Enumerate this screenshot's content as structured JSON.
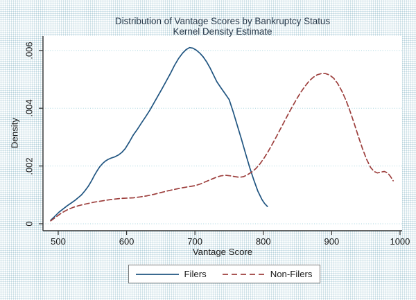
{
  "colors": {
    "filers_line": "#1f5480",
    "nonfilers_line": "#9d3f3d",
    "gridline": "#a8d5de",
    "axis": "#333333",
    "background_dot": "#b9d4de",
    "plot_background": "#ffffff",
    "title_text": "#28394a",
    "legend_border": "#7a7a7a"
  },
  "chart_data": {
    "type": "line",
    "title": "Distribution of Vantage Scores by Bankruptcy Status",
    "subtitle": "Kernel Density Estimate",
    "xlabel": "Vantage Score",
    "ylabel": "Density",
    "xlim": [
      477.7,
      1003.1
    ],
    "ylim": [
      -0.00024,
      0.0065
    ],
    "grid": "horizontal-dotted",
    "grid_color": "#a8d5de",
    "legend_position": "bottom-center",
    "x_ticks": [
      {
        "value": 500,
        "label": "500"
      },
      {
        "value": 600,
        "label": "600"
      },
      {
        "value": 700,
        "label": "700"
      },
      {
        "value": 800,
        "label": "800"
      },
      {
        "value": 900,
        "label": "900"
      },
      {
        "value": 1000,
        "label": "1000"
      }
    ],
    "y_ticks": [
      {
        "value": 0,
        "label": "0"
      },
      {
        "value": 0.002,
        "label": ".002"
      },
      {
        "value": 0.004,
        "label": ".004"
      },
      {
        "value": 0.006,
        "label": ".006"
      }
    ],
    "series": [
      {
        "name": "Filers",
        "color": "#1f5480",
        "style": "solid",
        "points": [
          [
            489,
            0.00012
          ],
          [
            495,
            0.00026
          ],
          [
            501,
            0.0004
          ],
          [
            507,
            0.00051
          ],
          [
            513,
            0.00062
          ],
          [
            519,
            0.00072
          ],
          [
            525,
            0.00082
          ],
          [
            530,
            0.00092
          ],
          [
            534,
            0.001
          ],
          [
            539,
            0.00114
          ],
          [
            544,
            0.0013
          ],
          [
            549,
            0.0015
          ],
          [
            553,
            0.00168
          ],
          [
            557,
            0.00184
          ],
          [
            561,
            0.00198
          ],
          [
            565,
            0.00209
          ],
          [
            569,
            0.00217
          ],
          [
            573,
            0.00223
          ],
          [
            578,
            0.00228
          ],
          [
            583,
            0.00232
          ],
          [
            588,
            0.00238
          ],
          [
            593,
            0.00247
          ],
          [
            598,
            0.0026
          ],
          [
            604,
            0.00283
          ],
          [
            610,
            0.00308
          ],
          [
            616,
            0.00328
          ],
          [
            622,
            0.0035
          ],
          [
            628,
            0.00371
          ],
          [
            634,
            0.00393
          ],
          [
            640,
            0.00418
          ],
          [
            646,
            0.00443
          ],
          [
            652,
            0.00468
          ],
          [
            658,
            0.00494
          ],
          [
            664,
            0.0052
          ],
          [
            670,
            0.00548
          ],
          [
            676,
            0.00572
          ],
          [
            682,
            0.00591
          ],
          [
            687,
            0.00603
          ],
          [
            692,
            0.0061
          ],
          [
            697,
            0.00608
          ],
          [
            702,
            0.00601
          ],
          [
            707,
            0.00591
          ],
          [
            712,
            0.00578
          ],
          [
            717,
            0.00561
          ],
          [
            722,
            0.0054
          ],
          [
            727,
            0.00516
          ],
          [
            732,
            0.00492
          ],
          [
            738,
            0.00471
          ],
          [
            744,
            0.00451
          ],
          [
            750,
            0.0043
          ],
          [
            756,
            0.00387
          ],
          [
            762,
            0.0034
          ],
          [
            768,
            0.00293
          ],
          [
            774,
            0.00244
          ],
          [
            780,
            0.00196
          ],
          [
            786,
            0.00152
          ],
          [
            792,
            0.00113
          ],
          [
            798,
            0.00084
          ],
          [
            802,
            0.0007
          ],
          [
            806,
            0.0006
          ]
        ]
      },
      {
        "name": "Non-Filers",
        "color": "#9d3f3d",
        "style": "dashed",
        "points": [
          [
            489,
            0.0001
          ],
          [
            497,
            0.00024
          ],
          [
            505,
            0.00038
          ],
          [
            513,
            0.00048
          ],
          [
            521,
            0.00056
          ],
          [
            529,
            0.00062
          ],
          [
            537,
            0.00067
          ],
          [
            545,
            0.00071
          ],
          [
            553,
            0.00075
          ],
          [
            561,
            0.00078
          ],
          [
            569,
            0.00081
          ],
          [
            577,
            0.00084
          ],
          [
            585,
            0.00086
          ],
          [
            593,
            0.00088
          ],
          [
            601,
            0.00089
          ],
          [
            610,
            0.0009
          ],
          [
            620,
            0.00093
          ],
          [
            630,
            0.00097
          ],
          [
            640,
            0.00102
          ],
          [
            650,
            0.00108
          ],
          [
            660,
            0.00114
          ],
          [
            670,
            0.00119
          ],
          [
            680,
            0.00124
          ],
          [
            690,
            0.00128
          ],
          [
            700,
            0.00132
          ],
          [
            708,
            0.00138
          ],
          [
            716,
            0.00146
          ],
          [
            724,
            0.00154
          ],
          [
            731,
            0.00161
          ],
          [
            738,
            0.00166
          ],
          [
            745,
            0.00168
          ],
          [
            752,
            0.00166
          ],
          [
            759,
            0.00163
          ],
          [
            765,
            0.00161
          ],
          [
            771,
            0.00163
          ],
          [
            777,
            0.0017
          ],
          [
            783,
            0.00179
          ],
          [
            789,
            0.00191
          ],
          [
            795,
            0.00207
          ],
          [
            801,
            0.00227
          ],
          [
            807,
            0.0025
          ],
          [
            813,
            0.00275
          ],
          [
            819,
            0.00301
          ],
          [
            825,
            0.00328
          ],
          [
            831,
            0.00355
          ],
          [
            837,
            0.00382
          ],
          [
            843,
            0.00408
          ],
          [
            849,
            0.00433
          ],
          [
            855,
            0.00456
          ],
          [
            861,
            0.00476
          ],
          [
            867,
            0.00494
          ],
          [
            873,
            0.00507
          ],
          [
            879,
            0.00516
          ],
          [
            885,
            0.0052
          ],
          [
            891,
            0.0052
          ],
          [
            897,
            0.00515
          ],
          [
            903,
            0.00504
          ],
          [
            909,
            0.00485
          ],
          [
            915,
            0.00459
          ],
          [
            921,
            0.00427
          ],
          [
            927,
            0.00389
          ],
          [
            933,
            0.00347
          ],
          [
            939,
            0.00303
          ],
          [
            945,
            0.00261
          ],
          [
            951,
            0.00224
          ],
          [
            957,
            0.00195
          ],
          [
            962,
            0.00181
          ],
          [
            967,
            0.00176
          ],
          [
            972,
            0.00179
          ],
          [
            977,
            0.00181
          ],
          [
            982,
            0.00176
          ],
          [
            986,
            0.00164
          ],
          [
            990,
            0.00149
          ]
        ]
      }
    ]
  }
}
